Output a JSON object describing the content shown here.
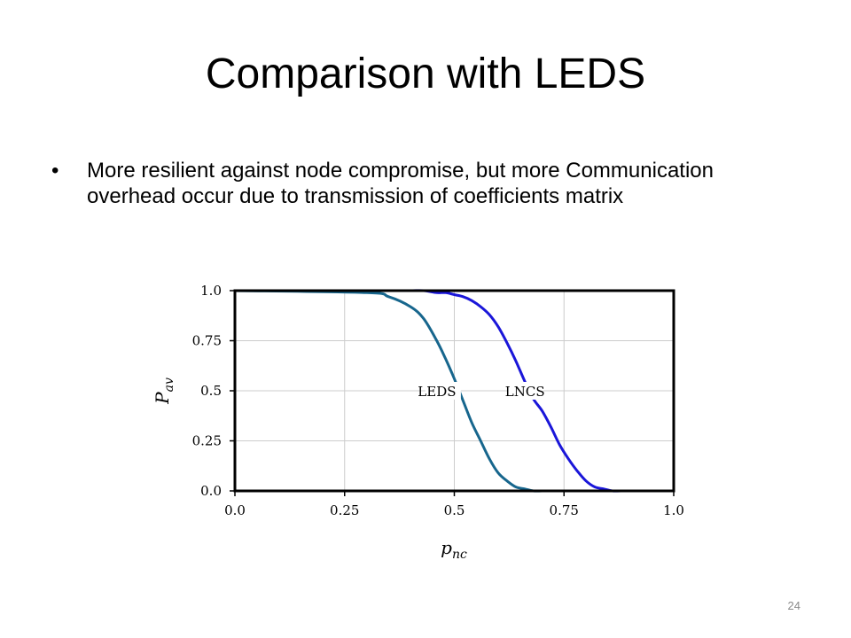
{
  "slide": {
    "title": "Comparison with LEDS",
    "bullets": [
      "More resilient against node compromise, but more Communication overhead occur due to transmission of coefficients matrix"
    ],
    "page_number": "24"
  },
  "colors": {
    "leds": "#17668d",
    "lncs": "#1a16d9",
    "grid": "#cccccc",
    "frame": "#000000"
  },
  "chart_data": {
    "type": "line",
    "title": "",
    "xlabel": "p_nc",
    "ylabel": "P_av",
    "xlim": [
      0.0,
      1.0
    ],
    "ylim": [
      0.0,
      1.0
    ],
    "xticks": [
      0.0,
      0.25,
      0.5,
      0.75,
      1.0
    ],
    "xtick_labels": [
      "0.0",
      "0.25",
      "0.5",
      "0.75",
      "1.0"
    ],
    "yticks": [
      0.0,
      0.25,
      0.5,
      0.75,
      1.0
    ],
    "ytick_labels": [
      "0.0",
      "0.25",
      "0.5",
      "0.75",
      "1.0"
    ],
    "grid": true,
    "x": [
      0.0,
      0.3,
      0.35,
      0.4,
      0.43,
      0.46,
      0.48,
      0.5,
      0.52,
      0.54,
      0.56,
      0.58,
      0.6,
      0.62,
      0.64,
      0.66,
      0.68,
      0.7,
      0.72,
      0.74,
      0.76,
      0.78,
      0.8,
      0.82,
      0.84,
      0.86,
      0.88,
      0.92,
      1.0
    ],
    "series": [
      {
        "name": "LEDS",
        "values": [
          1.0,
          0.99,
          0.97,
          0.92,
          0.86,
          0.75,
          0.66,
          0.56,
          0.45,
          0.34,
          0.25,
          0.16,
          0.09,
          0.05,
          0.02,
          0.01,
          0.0,
          0.0,
          0.0,
          0.0,
          0.0,
          0.0,
          0.0,
          0.0,
          0.0,
          0.0,
          0.0,
          0.0,
          0.0
        ]
      },
      {
        "name": "LNCS",
        "values": [
          1.0,
          1.0,
          1.0,
          1.0,
          1.0,
          0.99,
          0.99,
          0.98,
          0.97,
          0.95,
          0.92,
          0.88,
          0.82,
          0.74,
          0.65,
          0.55,
          0.46,
          0.4,
          0.32,
          0.23,
          0.16,
          0.1,
          0.05,
          0.02,
          0.01,
          0.0,
          0.0,
          0.0,
          0.0
        ]
      }
    ]
  }
}
